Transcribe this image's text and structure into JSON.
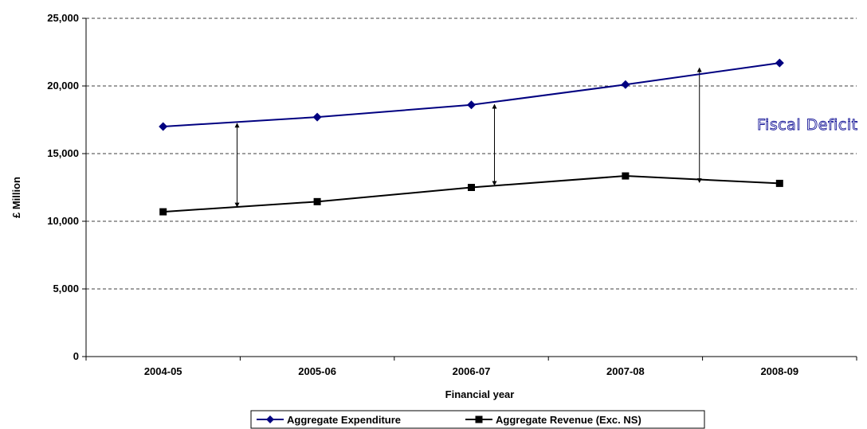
{
  "chart_data": {
    "type": "line",
    "title": "",
    "xlabel": "Financial year",
    "ylabel": "£ Million",
    "categories": [
      "2004-05",
      "2005-06",
      "2006-07",
      "2007-08",
      "2008-09"
    ],
    "ylim": [
      0,
      25000
    ],
    "yticks": [
      0,
      5000,
      10000,
      15000,
      20000,
      25000
    ],
    "ytick_labels": [
      "0",
      "5,000",
      "10,000",
      "15,000",
      "20,000",
      "25,000"
    ],
    "grid": "horizontal dashed",
    "legend_position": "bottom",
    "series": [
      {
        "name": "Aggregate Expenditure",
        "values": [
          17000,
          17700,
          18600,
          20100,
          21700
        ],
        "color": "#000080",
        "marker": "diamond"
      },
      {
        "name": "Aggregate Revenue (Exc. NS)",
        "values": [
          10700,
          11450,
          12500,
          13350,
          12800
        ],
        "color": "#000000",
        "marker": "square"
      }
    ],
    "annotation": {
      "text": "Fiscal Deficit",
      "arrows": [
        {
          "x_between": [
            "2004-05",
            "2005-06"
          ],
          "from": 17100,
          "to": 11200
        },
        {
          "x": "2006-07",
          "from": 18500,
          "to": 12800
        },
        {
          "x_between": [
            "2007-08",
            "2008-09"
          ],
          "from": 21200,
          "to": 13000
        }
      ]
    }
  }
}
